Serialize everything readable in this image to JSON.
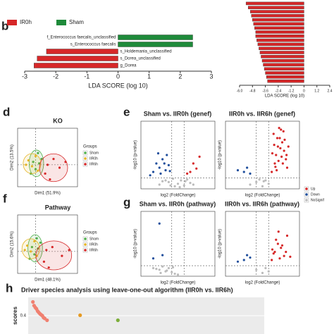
{
  "chart_data": [
    {
      "type": "bar",
      "panel": "b",
      "xlabel": "LDA SCORE (log 10)",
      "categories": [
        "f_Enterococcus faecalis_unclassified",
        "s_Enterococcus faecalis",
        "s_Holdemania_unclassified",
        "s_Dorea_unclassified",
        "g_Dorea"
      ],
      "series": [
        {
          "name": "IR0h",
          "color": "#d62728",
          "values": [
            null,
            null,
            -2.3,
            -2.6,
            -2.7
          ]
        },
        {
          "name": "Sham",
          "color": "#1e8a3a",
          "values": [
            2.4,
            2.4,
            null,
            null,
            null
          ]
        }
      ],
      "xlim": [
        -3,
        3
      ],
      "xticks": [
        -3,
        -2,
        -1,
        0,
        1,
        2,
        3
      ]
    },
    {
      "type": "bar",
      "xlabel": "LDA SCORE (log 10)",
      "categories": [
        null,
        null,
        null,
        null,
        null,
        null,
        null,
        null,
        null,
        null,
        null,
        null,
        null,
        null,
        null,
        null,
        null,
        null,
        null,
        null
      ],
      "series": [
        {
          "color": "#d62728",
          "values": [
            -5.4,
            -5.2,
            -5.0,
            -4.9,
            -4.8,
            -4.7,
            -4.6,
            -4.5,
            -4.5,
            -4.4,
            -4.3,
            -4.2,
            -4.1,
            -4.0,
            -3.9,
            -3.8,
            -3.7,
            -3.6,
            -3.5,
            -3.4
          ]
        }
      ],
      "xlim": [
        -6,
        2.4
      ],
      "xticks": [
        {
          "value": -6,
          "label": "-6.0"
        },
        -4.8,
        -3.6,
        -2.4,
        -1.2,
        0,
        1.2,
        2.4
      ]
    },
    {
      "type": "scatter",
      "panel": "d",
      "title": "KO",
      "xlabel": "Dim1 (51.9%)",
      "ylabel": "Dim2 (13.5%)",
      "legend_title": "Groups",
      "xlim": [
        -15,
        35
      ],
      "ylim": [
        -15,
        25
      ],
      "vlines": [
        0
      ],
      "hlines": [
        0
      ],
      "ellipse": true,
      "series": [
        {
          "name": "Sham",
          "color": "#4daf4a",
          "x": [
            -2,
            0,
            3,
            5,
            -4,
            2
          ],
          "y": [
            2,
            -3,
            1,
            4,
            -6,
            8
          ]
        },
        {
          "name": "IIR0h",
          "color": "#e6b422",
          "x": [
            -6,
            -3,
            0,
            -8,
            2
          ],
          "y": [
            3,
            -1,
            6,
            0,
            -4
          ]
        },
        {
          "name": "IIR6h",
          "color": "#d62728",
          "x": [
            10,
            15,
            20,
            8,
            25,
            12
          ],
          "y": [
            0,
            4,
            -2,
            -6,
            2,
            -10
          ]
        }
      ]
    },
    {
      "type": "scatter",
      "panel": "e",
      "title": "Sham vs. IIR0h (genef)",
      "xlabel": "log2 (FoldChange)",
      "ylabel": "-log10 (p-value)",
      "xlim": [
        -6,
        6
      ],
      "ylim": [
        0,
        8
      ],
      "vlines": [
        -1,
        1
      ],
      "hlines": [
        1.3
      ],
      "series": [
        {
          "color": "#bbbbbb",
          "x": [
            -3,
            -2,
            -1.5,
            -0.5,
            0,
            0.5,
            1,
            1.5,
            2,
            -2.5,
            -0.8,
            0.3,
            1.2,
            2.5,
            -1.2
          ],
          "y": [
            0.5,
            1,
            0.8,
            0.3,
            0.6,
            1,
            0.4,
            1.1,
            0.7,
            0.9,
            1.2,
            0.2,
            0.9,
            0.5,
            0.4
          ]
        },
        {
          "color": "#1f4e9c",
          "x": [
            -4,
            -3.5,
            -3,
            -2.5,
            -2,
            -1.8,
            -1.5,
            -3.2,
            -2.8,
            -2.2,
            -4.5,
            -1.3
          ],
          "y": [
            2,
            3,
            2.5,
            3.5,
            2.2,
            4,
            2.8,
            4.2,
            1.8,
            3,
            1.6,
            2.1
          ]
        },
        {
          "color": "#d62728",
          "x": [
            2,
            2.5,
            3,
            1.5,
            3.5
          ],
          "y": [
            2,
            3,
            2.4,
            1.8,
            3.8
          ]
        }
      ]
    },
    {
      "type": "scatter",
      "title": "IIR0h vs. IIR6h (genef)",
      "xlabel": "log2 (FoldChange)",
      "ylabel": "-log10 (p-value)",
      "xlim": [
        -6,
        6
      ],
      "ylim": [
        0,
        8
      ],
      "vlines": [
        -1,
        1
      ],
      "hlines": [
        1.3
      ],
      "legend_corner": "lower-right",
      "series": [
        {
          "name": "Up",
          "color": "#d62728",
          "x": [
            1.5,
            2,
            2.2,
            2.5,
            2.8,
            3,
            3.2,
            3.5,
            3.8,
            4,
            1.8,
            2.4,
            2.9,
            3.3,
            3.6,
            2.1,
            2.7,
            3.1,
            1.6,
            4.2,
            2.3,
            2.6,
            3.4,
            1.9,
            3.9
          ],
          "y": [
            2,
            3,
            4,
            5,
            6,
            7,
            5.5,
            4.5,
            3.5,
            2.5,
            6.5,
            6,
            4.8,
            3,
            5.8,
            2.6,
            7.2,
            3.8,
            4.2,
            5,
            2.2,
            3.3,
            6.8,
            5.2,
            4
          ]
        },
        {
          "name": "Down",
          "color": "#1f4e9c",
          "x": [
            -3,
            -2.5,
            -2,
            -4
          ],
          "y": [
            2,
            2.5,
            1.8,
            2.2
          ]
        },
        {
          "name": "NoSignif",
          "color": "#bbbbbb",
          "x": [
            -2,
            -1,
            0,
            0.5,
            1,
            -0.5,
            0.2
          ],
          "y": [
            0.5,
            0.8,
            0.3,
            1,
            0.6,
            1.1,
            0.9
          ]
        }
      ]
    },
    {
      "type": "scatter",
      "panel": "f",
      "title": "Pathway",
      "xlabel": "Dim1 (48.1%)",
      "ylabel": "Dim2 (15.6%)",
      "legend_title": "Groups",
      "xlim": [
        -15,
        35
      ],
      "ylim": [
        -15,
        25
      ],
      "vlines": [
        0
      ],
      "hlines": [
        0
      ],
      "ellipse": true,
      "series": [
        {
          "name": "Sham",
          "color": "#4daf4a",
          "x": [
            -3,
            -1,
            2,
            4,
            -5,
            1
          ],
          "y": [
            3,
            -2,
            2,
            6,
            -5,
            9
          ]
        },
        {
          "name": "IIR0h",
          "color": "#e6b422",
          "x": [
            -7,
            -4,
            -1,
            -9,
            1
          ],
          "y": [
            4,
            0,
            7,
            1,
            -3
          ]
        },
        {
          "name": "IIR6h",
          "color": "#d62728",
          "x": [
            9,
            14,
            22,
            7,
            28,
            11
          ],
          "y": [
            1,
            3,
            -3,
            -7,
            1,
            -11
          ]
        }
      ]
    },
    {
      "type": "scatter",
      "panel": "g",
      "title": "Sham vs. IIR0h (pathway)",
      "xlabel": "log2 (FoldChange)",
      "ylabel": "-log10 (p-value)",
      "xlim": [
        -6,
        6
      ],
      "ylim": [
        0,
        8
      ],
      "vlines": [
        -1,
        1
      ],
      "hlines": [
        1.3
      ],
      "series": [
        {
          "color": "#bbbbbb",
          "x": [
            -4,
            -3,
            -2.5,
            -2,
            -1.5,
            -1,
            -0.5,
            0,
            -3.5,
            -2.8,
            -1.8,
            -0.8
          ],
          "y": [
            1,
            0.8,
            1.2,
            0.6,
            1,
            0.5,
            0.3,
            0.2,
            0.9,
            0.4,
            0.7,
            1.1
          ]
        },
        {
          "color": "#1f4e9c",
          "x": [
            -3,
            -2.5,
            -4
          ],
          "y": [
            6.5,
            2.6,
            2.2
          ]
        }
      ]
    },
    {
      "type": "scatter",
      "title": "IIR0h vs. IIR6h (pathway)",
      "xlabel": "log2 (FoldChange)",
      "ylabel": "-log10 (p-value)",
      "xlim": [
        -6,
        6
      ],
      "ylim": [
        0,
        8
      ],
      "vlines": [
        -1,
        1
      ],
      "hlines": [
        1.3
      ],
      "series": [
        {
          "color": "#d62728",
          "x": [
            1.5,
            2,
            2.5,
            3,
            3.5,
            4,
            1.8,
            2.2,
            2.8,
            3.2,
            3.8,
            4.5,
            2.6,
            1.6
          ],
          "y": [
            2,
            3,
            4,
            3.5,
            2.5,
            5,
            2.8,
            4.5,
            2.2,
            3.8,
            3,
            2.4,
            5.5,
            3.3
          ]
        },
        {
          "color": "#1f4e9c",
          "x": [
            -3,
            -2.5,
            -4,
            -2
          ],
          "y": [
            2,
            2.6,
            1.8,
            2.3
          ]
        },
        {
          "color": "#bbbbbb",
          "x": [
            -1,
            0,
            0.5,
            1
          ],
          "y": [
            0.8,
            0.4,
            1,
            0.6
          ]
        }
      ]
    },
    {
      "type": "scatter",
      "panel": "h",
      "title": "Driver species analysis using leave-one-out algorithm (IIR0h vs. IIR6h)",
      "ylabel": "scores",
      "xlim": [
        0,
        100
      ],
      "ylim": [
        0,
        0.8
      ],
      "yticks": [
        0.4
      ],
      "background": "#ebebeb",
      "series": [
        {
          "color": "#f08070",
          "x": [
            2,
            2.5,
            3,
            3.5,
            4,
            4.5,
            5,
            5.5,
            6,
            6.5,
            7,
            8
          ],
          "y": [
            0.7,
            0.62,
            0.58,
            0.55,
            0.5,
            0.47,
            0.44,
            0.42,
            0.4,
            0.36,
            0.34,
            0.3
          ]
        },
        {
          "color": "#e69a22",
          "x": [
            22
          ],
          "y": [
            0.41
          ]
        },
        {
          "color": "#7cae3a",
          "x": [
            38
          ],
          "y": [
            0.3
          ]
        }
      ]
    }
  ]
}
